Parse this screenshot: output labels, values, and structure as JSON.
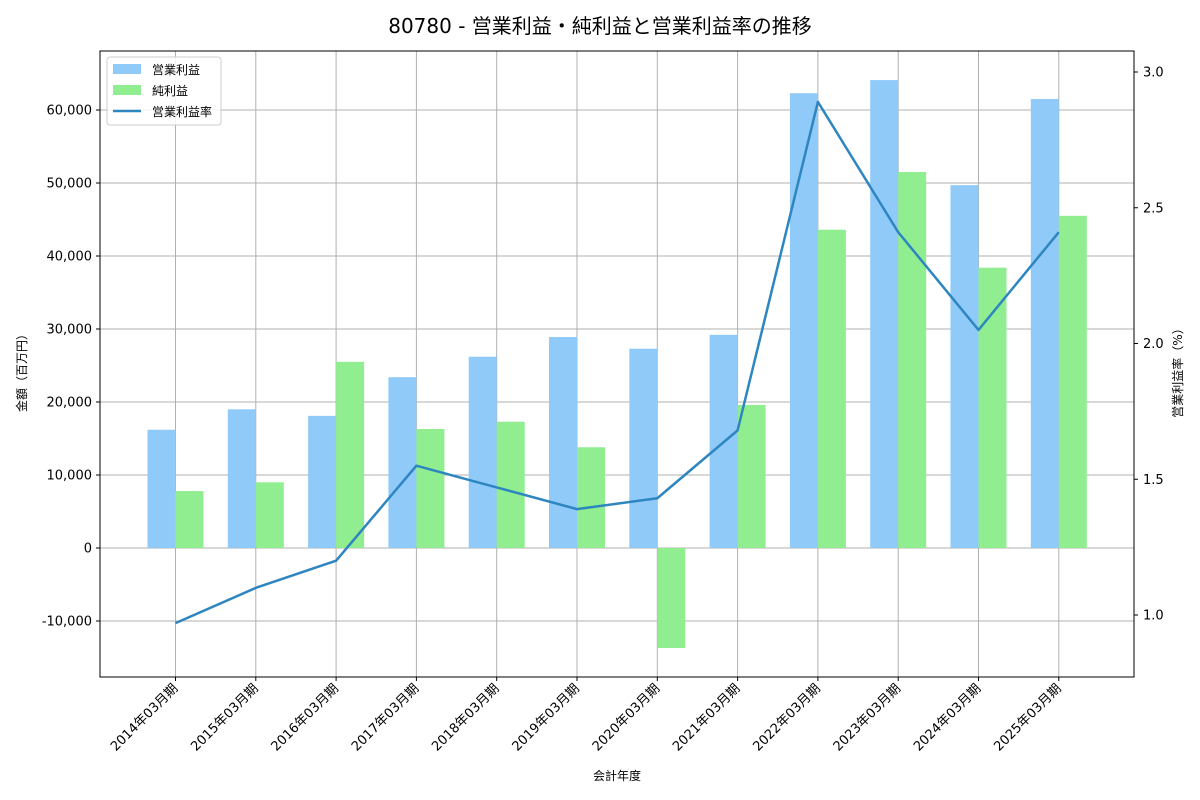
{
  "chart_data": {
    "type": "bar",
    "title": "80780 - 営業利益・純利益と営業利益率の推移",
    "xlabel": "会計年度",
    "ylabel": "金額（百万円）",
    "y2label": "営業利益率（%）",
    "categories": [
      "2014年03月期",
      "2015年03月期",
      "2016年03月期",
      "2017年03月期",
      "2018年03月期",
      "2019年03月期",
      "2020年03月期",
      "2021年03月期",
      "2022年03月期",
      "2023年03月期",
      "2024年03月期",
      "2025年03月期"
    ],
    "series": [
      {
        "name": "営業利益",
        "type": "bar",
        "axis": "left",
        "color": "#90CAF9",
        "values": [
          16200,
          19000,
          18100,
          23400,
          26200,
          28900,
          27300,
          29200,
          62300,
          64100,
          49700,
          61500
        ]
      },
      {
        "name": "純利益",
        "type": "bar",
        "axis": "left",
        "color": "#90EE90",
        "values": [
          7800,
          9000,
          25500,
          16300,
          17300,
          13800,
          -13700,
          19600,
          43600,
          51500,
          38400,
          45500
        ]
      },
      {
        "name": "営業利益率",
        "type": "line",
        "axis": "right",
        "color": "#2E86C1",
        "values": [
          0.97,
          1.1,
          1.2,
          1.55,
          1.47,
          1.39,
          1.43,
          1.68,
          2.89,
          2.41,
          2.05,
          2.41
        ]
      }
    ],
    "ylim": [
      -17500,
      67800
    ],
    "y2lim": [
      0.77,
      3.07
    ],
    "yticks": [
      "-10,000",
      "0",
      "10,000",
      "20,000",
      "30,000",
      "40,000",
      "50,000",
      "60,000"
    ],
    "yticks_values": [
      -10000,
      0,
      10000,
      20000,
      30000,
      40000,
      50000,
      60000
    ],
    "y2ticks": [
      "1.0",
      "1.5",
      "2.0",
      "2.5",
      "3.0"
    ],
    "y2ticks_values": [
      1.0,
      1.5,
      2.0,
      2.5,
      3.0
    ],
    "grid": true,
    "legend_position": "upper left"
  }
}
